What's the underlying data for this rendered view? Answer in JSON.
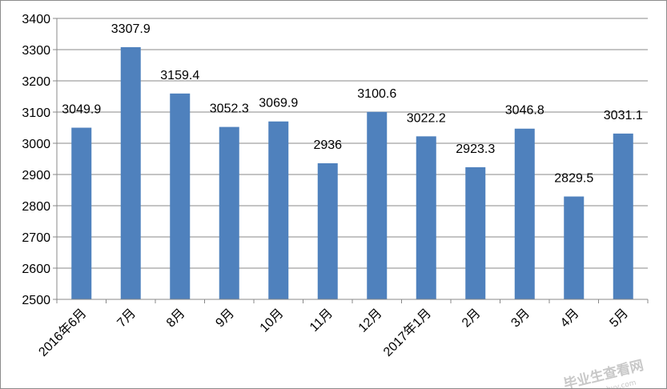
{
  "chart_data": {
    "type": "bar",
    "categories": [
      "2016年6月",
      "7月",
      "8月",
      "9月",
      "10月",
      "11月",
      "12月",
      "2017年1月",
      "2月",
      "3月",
      "4月",
      "5月"
    ],
    "values": [
      3049.9,
      3307.9,
      3159.4,
      3052.3,
      3069.9,
      2936,
      3100.6,
      3022.2,
      2923.3,
      3046.8,
      2829.5,
      3031.1
    ],
    "value_labels": [
      "3049.9",
      "3307.9",
      "3159.4",
      "3052.3",
      "3069.9",
      "2936",
      "3100.6",
      "3022.2",
      "2923.3",
      "3046.8",
      "2829.5",
      "3031.1"
    ],
    "y_ticks": [
      "2500",
      "2600",
      "2700",
      "2800",
      "2900",
      "3000",
      "3100",
      "3200",
      "3300",
      "3400"
    ],
    "ylim": [
      2500,
      3400
    ],
    "title": "",
    "xlabel": "",
    "ylabel": "",
    "grid": true,
    "bar_color": "#4f81bd"
  },
  "watermark": {
    "text": "毕业生查看网",
    "url": "www.sbvv.com"
  }
}
